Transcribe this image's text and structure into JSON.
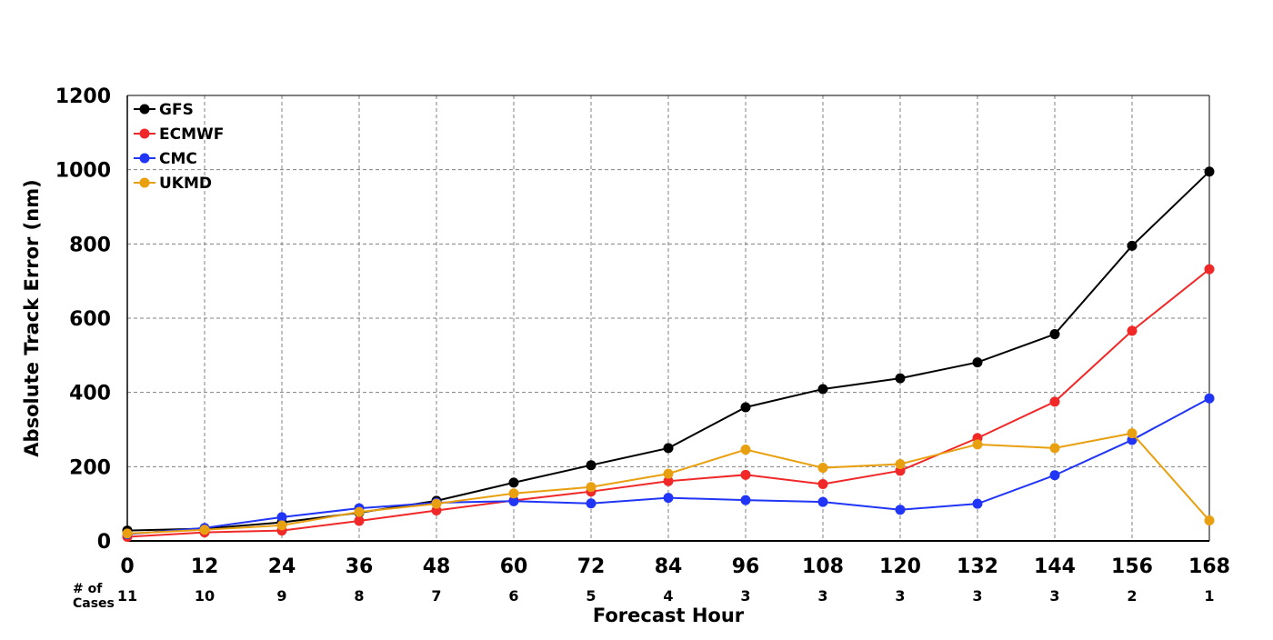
{
  "chart_data": {
    "type": "line",
    "xlabel": "Forecast Hour",
    "ylabel": "Absolute Track Error (nm)",
    "xlim": [
      0,
      168
    ],
    "ylim": [
      0,
      1200
    ],
    "x": [
      0,
      12,
      24,
      36,
      48,
      60,
      72,
      84,
      96,
      108,
      120,
      132,
      144,
      156,
      168
    ],
    "xticks": [
      0,
      12,
      24,
      36,
      48,
      60,
      72,
      84,
      96,
      108,
      120,
      132,
      144,
      156,
      168
    ],
    "yticks": [
      0,
      200,
      400,
      600,
      800,
      1000,
      1200
    ],
    "grid": true,
    "legend_position": "top-left",
    "cases_label_line1": "# of",
    "cases_label_line2": "Cases",
    "cases": [
      11,
      10,
      9,
      8,
      7,
      6,
      5,
      4,
      3,
      3,
      3,
      3,
      3,
      2,
      1
    ],
    "series": [
      {
        "name": "GFS",
        "color": "#000000",
        "values": [
          28,
          33,
          50,
          76,
          108,
          157,
          204,
          250,
          360,
          409,
          438,
          481,
          557,
          795,
          995
        ]
      },
      {
        "name": "ECMWF",
        "color": "#f02828",
        "values": [
          11,
          23,
          28,
          54,
          82,
          109,
          133,
          161,
          178,
          153,
          189,
          277,
          375,
          566,
          732
        ]
      },
      {
        "name": "CMC",
        "color": "#2035f5",
        "values": [
          18,
          35,
          64,
          88,
          103,
          107,
          101,
          116,
          110,
          105,
          84,
          100,
          177,
          272,
          384
        ]
      },
      {
        "name": "UKMD",
        "color": "#e8a010",
        "values": [
          20,
          30,
          42,
          78,
          100,
          128,
          145,
          181,
          246,
          197,
          207,
          260,
          250,
          290,
          55
        ]
      }
    ]
  }
}
